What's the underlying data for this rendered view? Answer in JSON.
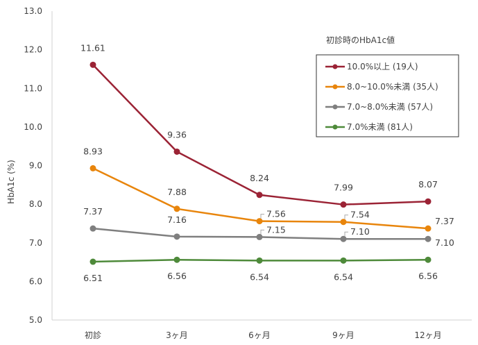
{
  "chart_data": {
    "type": "line",
    "ylabel": "HbA1c (%)",
    "ylim": [
      5.0,
      13.0
    ],
    "yticks": [
      "5.0",
      "6.0",
      "7.0",
      "8.0",
      "9.0",
      "10.0",
      "11.0",
      "12.0",
      "13.0"
    ],
    "categories": [
      "初診",
      "3ヶ月",
      "6ヶ月",
      "9ヶ月",
      "12ヶ月"
    ],
    "legend_title": "初診時のHbA1c値",
    "legend_position": "top-right",
    "grid": false,
    "series": [
      {
        "name": "10.0%以上 (19人)",
        "color": "#9B2335",
        "values": [
          11.61,
          9.36,
          8.24,
          7.99,
          8.07
        ],
        "labels": [
          "11.61",
          "9.36",
          "8.24",
          "7.99",
          "8.07"
        ]
      },
      {
        "name": "8.0~10.0%未満 (35人)",
        "color": "#E8850C",
        "values": [
          8.93,
          7.88,
          7.56,
          7.54,
          7.37
        ],
        "labels": [
          "8.93",
          "7.88",
          "7.56",
          "7.54",
          "7.37"
        ]
      },
      {
        "name": "7.0~8.0%未満 (57人)",
        "color": "#7F7F7F",
        "values": [
          7.37,
          7.16,
          7.15,
          7.1,
          7.1
        ],
        "labels": [
          "7.37",
          "7.16",
          "7.15",
          "7.10",
          "7.10"
        ]
      },
      {
        "name": "7.0%未満 (81人)",
        "color": "#4E8A3A",
        "values": [
          6.51,
          6.56,
          6.54,
          6.54,
          6.56
        ],
        "labels": [
          "6.51",
          "6.56",
          "6.54",
          "6.54",
          "6.56"
        ]
      }
    ]
  }
}
